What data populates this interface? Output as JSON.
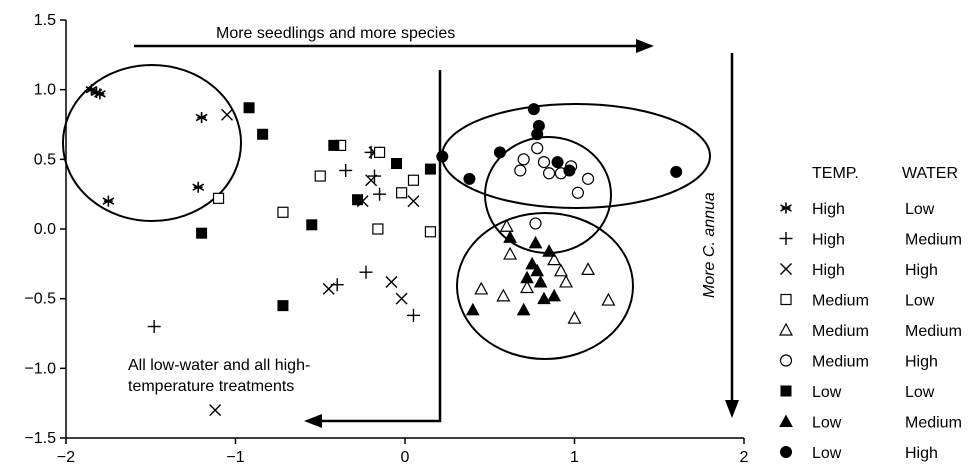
{
  "chart_data": {
    "type": "scatter",
    "xlim": [
      -2,
      2
    ],
    "ylim": [
      -1.5,
      1.5
    ],
    "x_ticks": [
      "−2",
      "−1",
      "0",
      "1",
      "2"
    ],
    "y_ticks": [
      "1.5",
      "1.0",
      "0.5",
      "0.0",
      "−0.5",
      "−1.0",
      "−1.5"
    ],
    "x_tick_values": [
      -2,
      -1,
      0,
      1,
      2
    ],
    "y_tick_values": [
      1.5,
      1.0,
      0.5,
      0.0,
      -0.5,
      -1.0,
      -1.5
    ],
    "annotations": {
      "top_arrow_text": "More seedlings and more species",
      "side_arrow_text": "More C. annua",
      "bottom_text_line1": "All low-water and all high-",
      "bottom_text_line2": "temperature treatments"
    },
    "legend": {
      "header_temp": "TEMP.",
      "header_water": "WATER",
      "placement": "right"
    },
    "series": [
      {
        "temp": "High",
        "water": "Low",
        "marker": "asterisk",
        "points": [
          [
            -1.85,
            1.0
          ],
          [
            -1.82,
            0.98
          ],
          [
            -1.8,
            0.97
          ],
          [
            -1.2,
            0.8
          ],
          [
            -1.22,
            0.3
          ],
          [
            -1.75,
            0.2
          ]
        ]
      },
      {
        "temp": "High",
        "water": "Medium",
        "marker": "plus",
        "points": [
          [
            -0.35,
            0.42
          ],
          [
            -0.2,
            0.55
          ],
          [
            -0.18,
            0.38
          ],
          [
            -0.15,
            0.25
          ],
          [
            -0.4,
            -0.4
          ],
          [
            -0.23,
            -0.31
          ],
          [
            0.05,
            -0.62
          ],
          [
            -1.48,
            -0.7
          ]
        ]
      },
      {
        "temp": "High",
        "water": "High",
        "marker": "x",
        "points": [
          [
            -1.05,
            0.82
          ],
          [
            -0.18,
            0.55
          ],
          [
            -0.2,
            0.35
          ],
          [
            -0.25,
            0.2
          ],
          [
            0.05,
            0.2
          ],
          [
            -0.45,
            -0.43
          ],
          [
            -0.08,
            -0.38
          ],
          [
            -0.02,
            -0.5
          ],
          [
            -1.12,
            -1.3
          ]
        ]
      },
      {
        "temp": "Medium",
        "water": "Low",
        "marker": "open-square",
        "points": [
          [
            -1.1,
            0.22
          ],
          [
            -0.72,
            0.12
          ],
          [
            -0.38,
            0.6
          ],
          [
            -0.5,
            0.38
          ],
          [
            -0.15,
            0.55
          ],
          [
            -0.16,
            0.0
          ],
          [
            -0.02,
            0.26
          ],
          [
            0.05,
            0.35
          ],
          [
            0.15,
            -0.02
          ]
        ]
      },
      {
        "temp": "Medium",
        "water": "Medium",
        "marker": "open-triangle",
        "points": [
          [
            0.6,
            0.02
          ],
          [
            0.62,
            -0.18
          ],
          [
            0.88,
            -0.22
          ],
          [
            0.92,
            -0.3
          ],
          [
            1.08,
            -0.29
          ],
          [
            1.2,
            -0.51
          ],
          [
            0.45,
            -0.43
          ],
          [
            0.58,
            -0.48
          ],
          [
            0.72,
            -0.42
          ],
          [
            0.95,
            -0.38
          ],
          [
            1.0,
            -0.64
          ]
        ]
      },
      {
        "temp": "Medium",
        "water": "High",
        "marker": "open-circle",
        "points": [
          [
            0.7,
            0.5
          ],
          [
            0.78,
            0.58
          ],
          [
            0.82,
            0.48
          ],
          [
            0.68,
            0.42
          ],
          [
            0.85,
            0.4
          ],
          [
            0.92,
            0.4
          ],
          [
            0.98,
            0.45
          ],
          [
            1.08,
            0.36
          ],
          [
            1.02,
            0.26
          ],
          [
            0.77,
            0.04
          ]
        ]
      },
      {
        "temp": "Low",
        "water": "Low",
        "marker": "filled-square",
        "points": [
          [
            -0.92,
            0.87
          ],
          [
            -0.84,
            0.68
          ],
          [
            -0.42,
            0.6
          ],
          [
            -0.05,
            0.47
          ],
          [
            0.15,
            0.43
          ],
          [
            -0.28,
            0.21
          ],
          [
            -1.2,
            -0.03
          ],
          [
            -0.72,
            -0.55
          ],
          [
            -0.55,
            0.03
          ]
        ]
      },
      {
        "temp": "Low",
        "water": "Medium",
        "marker": "filled-triangle",
        "points": [
          [
            0.62,
            -0.06
          ],
          [
            0.77,
            -0.1
          ],
          [
            0.85,
            -0.16
          ],
          [
            0.75,
            -0.25
          ],
          [
            0.78,
            -0.3
          ],
          [
            0.8,
            -0.38
          ],
          [
            0.72,
            -0.35
          ],
          [
            0.82,
            -0.5
          ],
          [
            0.4,
            -0.58
          ],
          [
            0.7,
            -0.58
          ],
          [
            0.88,
            -0.48
          ]
        ]
      },
      {
        "temp": "Low",
        "water": "High",
        "marker": "filled-circle",
        "points": [
          [
            0.76,
            0.86
          ],
          [
            0.79,
            0.74
          ],
          [
            0.78,
            0.68
          ],
          [
            0.22,
            0.52
          ],
          [
            0.56,
            0.55
          ],
          [
            0.38,
            0.36
          ],
          [
            0.9,
            0.48
          ],
          [
            0.97,
            0.42
          ],
          [
            1.6,
            0.41
          ]
        ]
      }
    ]
  }
}
